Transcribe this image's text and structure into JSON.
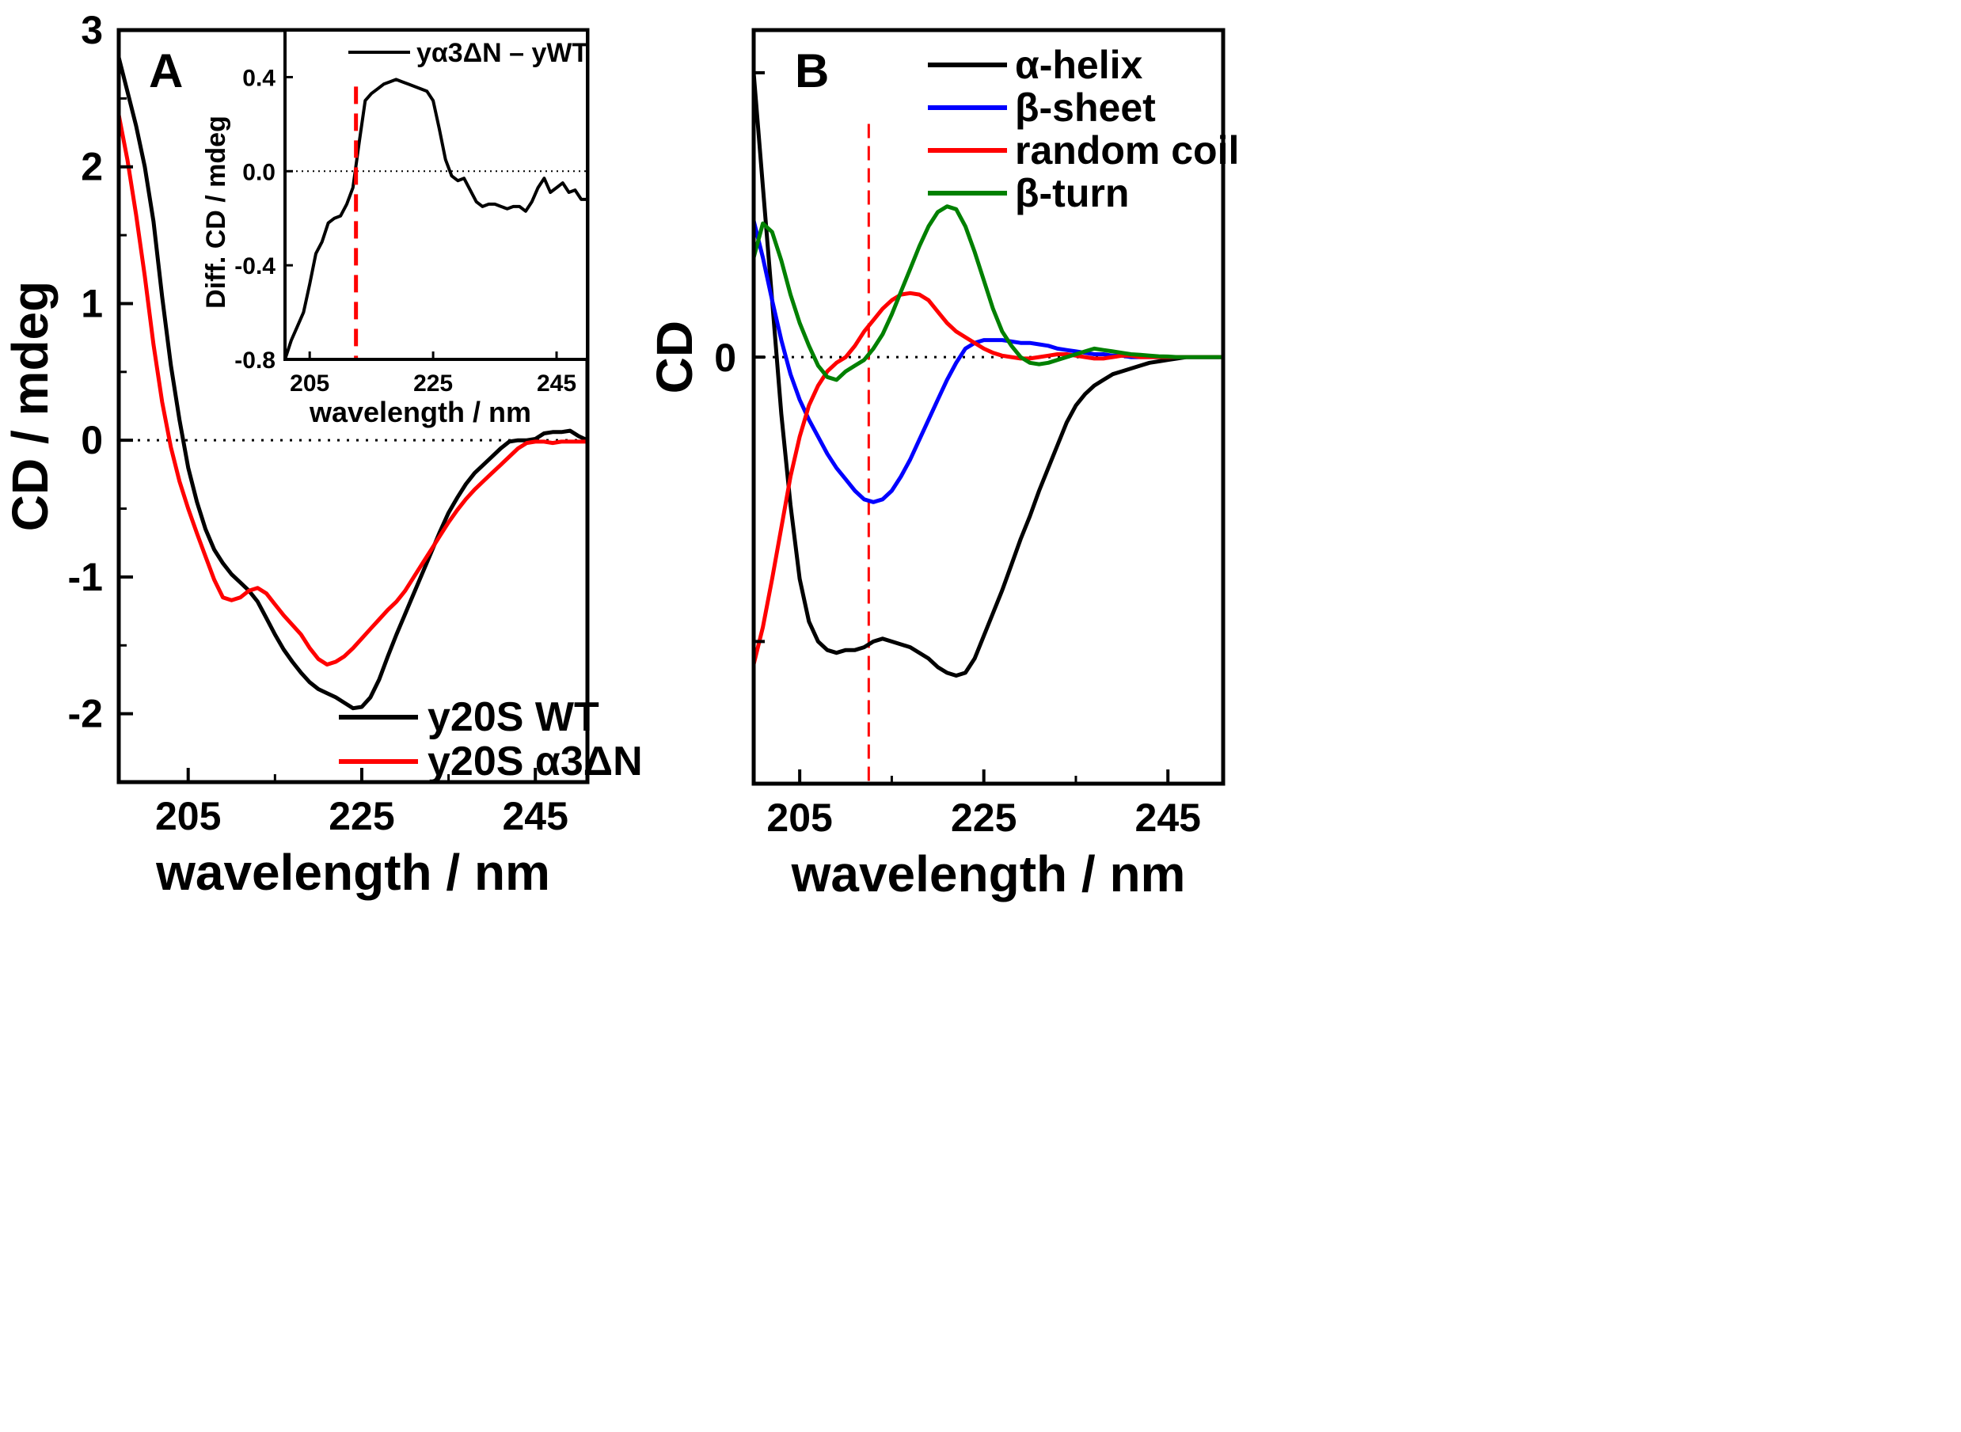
{
  "chart_data": [
    {
      "id": "A",
      "type": "line",
      "panel_label": "A",
      "xlabel": "wavelength / nm",
      "ylabel": "CD / mdeg",
      "xlim": [
        197,
        251
      ],
      "ylim": [
        -2.5,
        3
      ],
      "xticks": [
        205,
        225,
        245
      ],
      "yticks": [
        -2,
        -1,
        0,
        1,
        2,
        3
      ],
      "x_tick_labels": [
        "205",
        "225",
        "245"
      ],
      "y_tick_labels": [
        "-2",
        "-1",
        "0",
        "1",
        "2",
        "3"
      ],
      "zero_line": true,
      "legend_position": "bottom-right",
      "series": [
        {
          "name": "y20S WT",
          "color": "#000000",
          "x": [
            197,
            198,
            199,
            200,
            201,
            202,
            203,
            204,
            205,
            206,
            207,
            208,
            209,
            210,
            211,
            212,
            213,
            214,
            215,
            216,
            217,
            218,
            219,
            220,
            221,
            222,
            223,
            224,
            225,
            226,
            227,
            228,
            229,
            230,
            231,
            232,
            233,
            234,
            235,
            236,
            237,
            238,
            239,
            240,
            241,
            242,
            243,
            244,
            245,
            246,
            247,
            248,
            249,
            250,
            251
          ],
          "y": [
            2.8,
            2.55,
            2.3,
            2.0,
            1.6,
            1.05,
            0.55,
            0.15,
            -0.2,
            -0.45,
            -0.65,
            -0.8,
            -0.9,
            -0.98,
            -1.04,
            -1.1,
            -1.18,
            -1.3,
            -1.42,
            -1.53,
            -1.62,
            -1.7,
            -1.77,
            -1.82,
            -1.85,
            -1.88,
            -1.92,
            -1.96,
            -1.95,
            -1.88,
            -1.75,
            -1.58,
            -1.42,
            -1.27,
            -1.12,
            -0.97,
            -0.82,
            -0.67,
            -0.53,
            -0.42,
            -0.32,
            -0.24,
            -0.18,
            -0.12,
            -0.06,
            -0.01,
            0.0,
            0.0,
            0.01,
            0.05,
            0.06,
            0.06,
            0.07,
            0.03,
            0.0
          ]
        },
        {
          "name": "y20S α3ΔN",
          "color": "#ff0000",
          "x": [
            197,
            198,
            199,
            200,
            201,
            202,
            203,
            204,
            205,
            206,
            207,
            208,
            209,
            210,
            211,
            212,
            213,
            214,
            215,
            216,
            217,
            218,
            219,
            220,
            221,
            222,
            223,
            224,
            225,
            226,
            227,
            228,
            229,
            230,
            231,
            232,
            233,
            234,
            235,
            236,
            237,
            238,
            239,
            240,
            241,
            242,
            243,
            244,
            245,
            246,
            247,
            248,
            249,
            250,
            251
          ],
          "y": [
            2.38,
            2.05,
            1.65,
            1.2,
            0.7,
            0.28,
            -0.05,
            -0.3,
            -0.5,
            -0.68,
            -0.85,
            -1.02,
            -1.15,
            -1.17,
            -1.15,
            -1.1,
            -1.08,
            -1.12,
            -1.2,
            -1.28,
            -1.35,
            -1.42,
            -1.52,
            -1.6,
            -1.64,
            -1.62,
            -1.58,
            -1.52,
            -1.45,
            -1.38,
            -1.31,
            -1.24,
            -1.18,
            -1.1,
            -1.0,
            -0.9,
            -0.8,
            -0.7,
            -0.6,
            -0.51,
            -0.43,
            -0.36,
            -0.3,
            -0.24,
            -0.18,
            -0.12,
            -0.06,
            -0.02,
            -0.01,
            -0.01,
            -0.02,
            -0.01,
            -0.01,
            -0.01,
            -0.01
          ]
        }
      ],
      "inset": {
        "type": "line",
        "xlabel": "wavelength / nm",
        "ylabel": "Diff. CD / mdeg",
        "xlim": [
          201,
          250
        ],
        "ylim": [
          -0.8,
          0.6
        ],
        "xticks": [
          205,
          225,
          245
        ],
        "yticks": [
          -0.8,
          -0.4,
          0.0,
          0.4
        ],
        "x_tick_labels": [
          "205",
          "225",
          "245"
        ],
        "y_tick_labels": [
          "-0.8",
          "-0.4",
          "0.0",
          "0.4"
        ],
        "zero_line": true,
        "vline_x": 212.5,
        "vline_color": "#ff0000",
        "legend_position": "top-right",
        "series": [
          {
            "name": "yα3ΔN – yWT",
            "color": "#000000",
            "x": [
              201,
              202,
              203,
              204,
              205,
              206,
              207,
              208,
              209,
              210,
              211,
              212,
              213,
              214,
              215,
              216,
              217,
              218,
              219,
              220,
              221,
              222,
              223,
              224,
              225,
              226,
              227,
              228,
              229,
              230,
              231,
              232,
              233,
              234,
              235,
              236,
              237,
              238,
              239,
              240,
              241,
              242,
              243,
              244,
              245,
              246,
              247,
              248,
              249,
              250
            ],
            "y": [
              -0.8,
              -0.72,
              -0.66,
              -0.6,
              -0.48,
              -0.35,
              -0.3,
              -0.22,
              -0.2,
              -0.19,
              -0.14,
              -0.07,
              0.12,
              0.3,
              0.33,
              0.35,
              0.37,
              0.38,
              0.39,
              0.38,
              0.37,
              0.36,
              0.35,
              0.34,
              0.3,
              0.18,
              0.05,
              -0.02,
              -0.04,
              -0.03,
              -0.08,
              -0.13,
              -0.15,
              -0.14,
              -0.14,
              -0.15,
              -0.16,
              -0.15,
              -0.15,
              -0.17,
              -0.13,
              -0.07,
              -0.03,
              -0.09,
              -0.07,
              -0.05,
              -0.09,
              -0.08,
              -0.12,
              -0.12
            ]
          }
        ]
      }
    },
    {
      "id": "B",
      "type": "line",
      "panel_label": "B",
      "xlabel": "wavelength / nm",
      "ylabel": "CD",
      "xlim": [
        200,
        251
      ],
      "ylim": [
        -1.5,
        1.15
      ],
      "xticks": [
        205,
        225,
        245
      ],
      "yticks": [
        0
      ],
      "x_tick_labels": [
        "205",
        "225",
        "245"
      ],
      "y_tick_labels": [
        "0"
      ],
      "zero_line": true,
      "vline_x": 212.5,
      "vline_color": "#ff0000",
      "legend_position": "top-right",
      "series": [
        {
          "name": "α-helix",
          "color": "#000000",
          "x": [
            200,
            201,
            202,
            203,
            204,
            205,
            206,
            207,
            208,
            209,
            210,
            211,
            212,
            213,
            214,
            215,
            216,
            217,
            218,
            219,
            220,
            221,
            222,
            223,
            224,
            225,
            226,
            227,
            228,
            229,
            230,
            231,
            232,
            233,
            234,
            235,
            236,
            237,
            238,
            239,
            240,
            241,
            242,
            243,
            244,
            245,
            246,
            247,
            248,
            249,
            250,
            251
          ],
          "y": [
            1.0,
            0.6,
            0.2,
            -0.2,
            -0.52,
            -0.78,
            -0.93,
            -1.0,
            -1.03,
            -1.04,
            -1.03,
            -1.03,
            -1.02,
            -1.0,
            -0.99,
            -1.0,
            -1.01,
            -1.02,
            -1.04,
            -1.06,
            -1.09,
            -1.11,
            -1.12,
            -1.11,
            -1.06,
            -0.98,
            -0.9,
            -0.82,
            -0.73,
            -0.64,
            -0.56,
            -0.47,
            -0.39,
            -0.31,
            -0.23,
            -0.17,
            -0.13,
            -0.1,
            -0.08,
            -0.06,
            -0.05,
            -0.04,
            -0.03,
            -0.02,
            -0.015,
            -0.01,
            -0.005,
            0.0,
            0.0,
            0.0,
            0.0,
            0.0
          ]
        },
        {
          "name": "β-sheet",
          "color": "#0000ff",
          "x": [
            200,
            201,
            202,
            203,
            204,
            205,
            206,
            207,
            208,
            209,
            210,
            211,
            212,
            213,
            214,
            215,
            216,
            217,
            218,
            219,
            220,
            221,
            222,
            223,
            224,
            225,
            226,
            227,
            228,
            229,
            230,
            231,
            232,
            233,
            234,
            235,
            236,
            237,
            238,
            239,
            240,
            241,
            242,
            243,
            244,
            245,
            246,
            247,
            248,
            249,
            250,
            251
          ],
          "y": [
            0.48,
            0.35,
            0.2,
            0.06,
            -0.06,
            -0.15,
            -0.22,
            -0.28,
            -0.34,
            -0.39,
            -0.43,
            -0.47,
            -0.5,
            -0.51,
            -0.5,
            -0.47,
            -0.42,
            -0.36,
            -0.29,
            -0.22,
            -0.15,
            -0.08,
            -0.02,
            0.03,
            0.05,
            0.06,
            0.06,
            0.06,
            0.055,
            0.05,
            0.05,
            0.045,
            0.04,
            0.03,
            0.025,
            0.02,
            0.015,
            0.01,
            0.01,
            0.005,
            0.005,
            0.0,
            0.0,
            0.0,
            0.0,
            0.0,
            0.0,
            0.0,
            0.0,
            0.0,
            0.0,
            0.0
          ]
        },
        {
          "name": "random coil",
          "color": "#ff0000",
          "x": [
            200,
            201,
            202,
            203,
            204,
            205,
            206,
            207,
            208,
            209,
            210,
            211,
            212,
            213,
            214,
            215,
            216,
            217,
            218,
            219,
            220,
            221,
            222,
            223,
            224,
            225,
            226,
            227,
            228,
            229,
            230,
            231,
            232,
            233,
            234,
            235,
            236,
            237,
            238,
            239,
            240,
            241,
            242,
            243,
            244,
            245,
            246,
            247,
            248,
            249,
            250,
            251
          ],
          "y": [
            -1.08,
            -0.95,
            -0.78,
            -0.6,
            -0.42,
            -0.28,
            -0.17,
            -0.1,
            -0.05,
            -0.02,
            0.0,
            0.04,
            0.09,
            0.13,
            0.17,
            0.2,
            0.22,
            0.225,
            0.22,
            0.2,
            0.16,
            0.12,
            0.09,
            0.07,
            0.05,
            0.03,
            0.015,
            0.005,
            0.0,
            -0.005,
            -0.005,
            0.0,
            0.005,
            0.01,
            0.01,
            0.005,
            0.0,
            -0.005,
            -0.005,
            0.0,
            0.005,
            0.005,
            0.0,
            0.0,
            0.0,
            0.0,
            0.0,
            0.0,
            0.0,
            0.0,
            0.0,
            0.0
          ]
        },
        {
          "name": "β-turn",
          "color": "#008000",
          "x": [
            200,
            201,
            202,
            203,
            204,
            205,
            206,
            207,
            208,
            209,
            210,
            211,
            212,
            213,
            214,
            215,
            216,
            217,
            218,
            219,
            220,
            221,
            222,
            223,
            224,
            225,
            226,
            227,
            228,
            229,
            230,
            231,
            232,
            233,
            234,
            235,
            236,
            237,
            238,
            239,
            240,
            241,
            242,
            243,
            244,
            245,
            246,
            247,
            248,
            249,
            250,
            251
          ],
          "y": [
            0.35,
            0.47,
            0.44,
            0.34,
            0.22,
            0.12,
            0.04,
            -0.03,
            -0.07,
            -0.08,
            -0.05,
            -0.03,
            -0.01,
            0.03,
            0.08,
            0.15,
            0.23,
            0.31,
            0.39,
            0.46,
            0.51,
            0.53,
            0.52,
            0.46,
            0.37,
            0.27,
            0.17,
            0.09,
            0.04,
            0.0,
            -0.02,
            -0.025,
            -0.02,
            -0.01,
            0.0,
            0.01,
            0.02,
            0.03,
            0.025,
            0.02,
            0.015,
            0.01,
            0.008,
            0.005,
            0.003,
            0.002,
            0.0,
            0.0,
            0.0,
            0.0,
            0.0,
            0.0
          ]
        }
      ]
    }
  ]
}
